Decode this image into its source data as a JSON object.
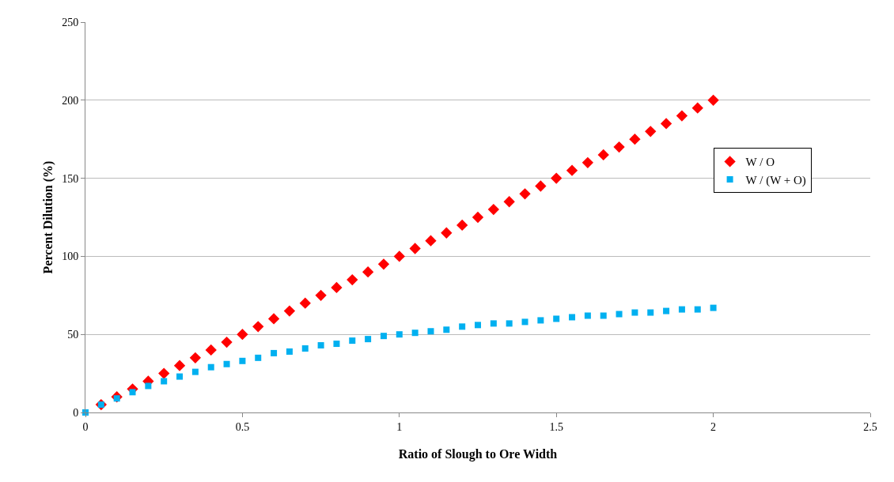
{
  "chart_data": {
    "type": "scatter",
    "xlabel": "Ratio of Slough to Ore Width",
    "ylabel": "Percent Dilution (%)",
    "x": [
      0,
      0.05,
      0.1,
      0.15,
      0.2,
      0.25,
      0.3,
      0.35,
      0.4,
      0.45,
      0.5,
      0.55,
      0.6,
      0.65,
      0.7,
      0.75,
      0.8,
      0.85,
      0.9,
      0.95,
      1,
      1.05,
      1.1,
      1.15,
      1.2,
      1.25,
      1.3,
      1.35,
      1.4,
      1.45,
      1.5,
      1.55,
      1.6,
      1.65,
      1.7,
      1.75,
      1.8,
      1.85,
      1.9,
      1.95,
      2
    ],
    "series": [
      {
        "name": "W / O",
        "color": "#ff0000",
        "marker": "diamond",
        "values": [
          null,
          5,
          10,
          15,
          20,
          25,
          30,
          35,
          40,
          45,
          50,
          55,
          60,
          65,
          70,
          75,
          80,
          85,
          90,
          95,
          100,
          105,
          110,
          115,
          120,
          125,
          130,
          135,
          140,
          145,
          150,
          155,
          160,
          165,
          170,
          175,
          180,
          185,
          190,
          195,
          200
        ]
      },
      {
        "name": "W / (W + O)",
        "color": "#00b0f0",
        "marker": "square",
        "values": [
          0,
          5,
          9,
          13,
          17,
          20,
          23,
          26,
          29,
          31,
          33,
          35,
          38,
          39,
          41,
          43,
          44,
          46,
          47,
          49,
          50,
          51,
          52,
          53,
          55,
          56,
          57,
          57,
          58,
          59,
          60,
          61,
          62,
          62,
          63,
          64,
          64,
          65,
          66,
          66,
          67
        ]
      }
    ],
    "xlim": [
      0,
      2.5
    ],
    "xticks": [
      0,
      0.5,
      1,
      1.5,
      2,
      2.5
    ],
    "ylim": [
      0,
      250
    ],
    "yticks": [
      0,
      50,
      100,
      150,
      200,
      250
    ],
    "grid": "y",
    "legend": "right"
  }
}
